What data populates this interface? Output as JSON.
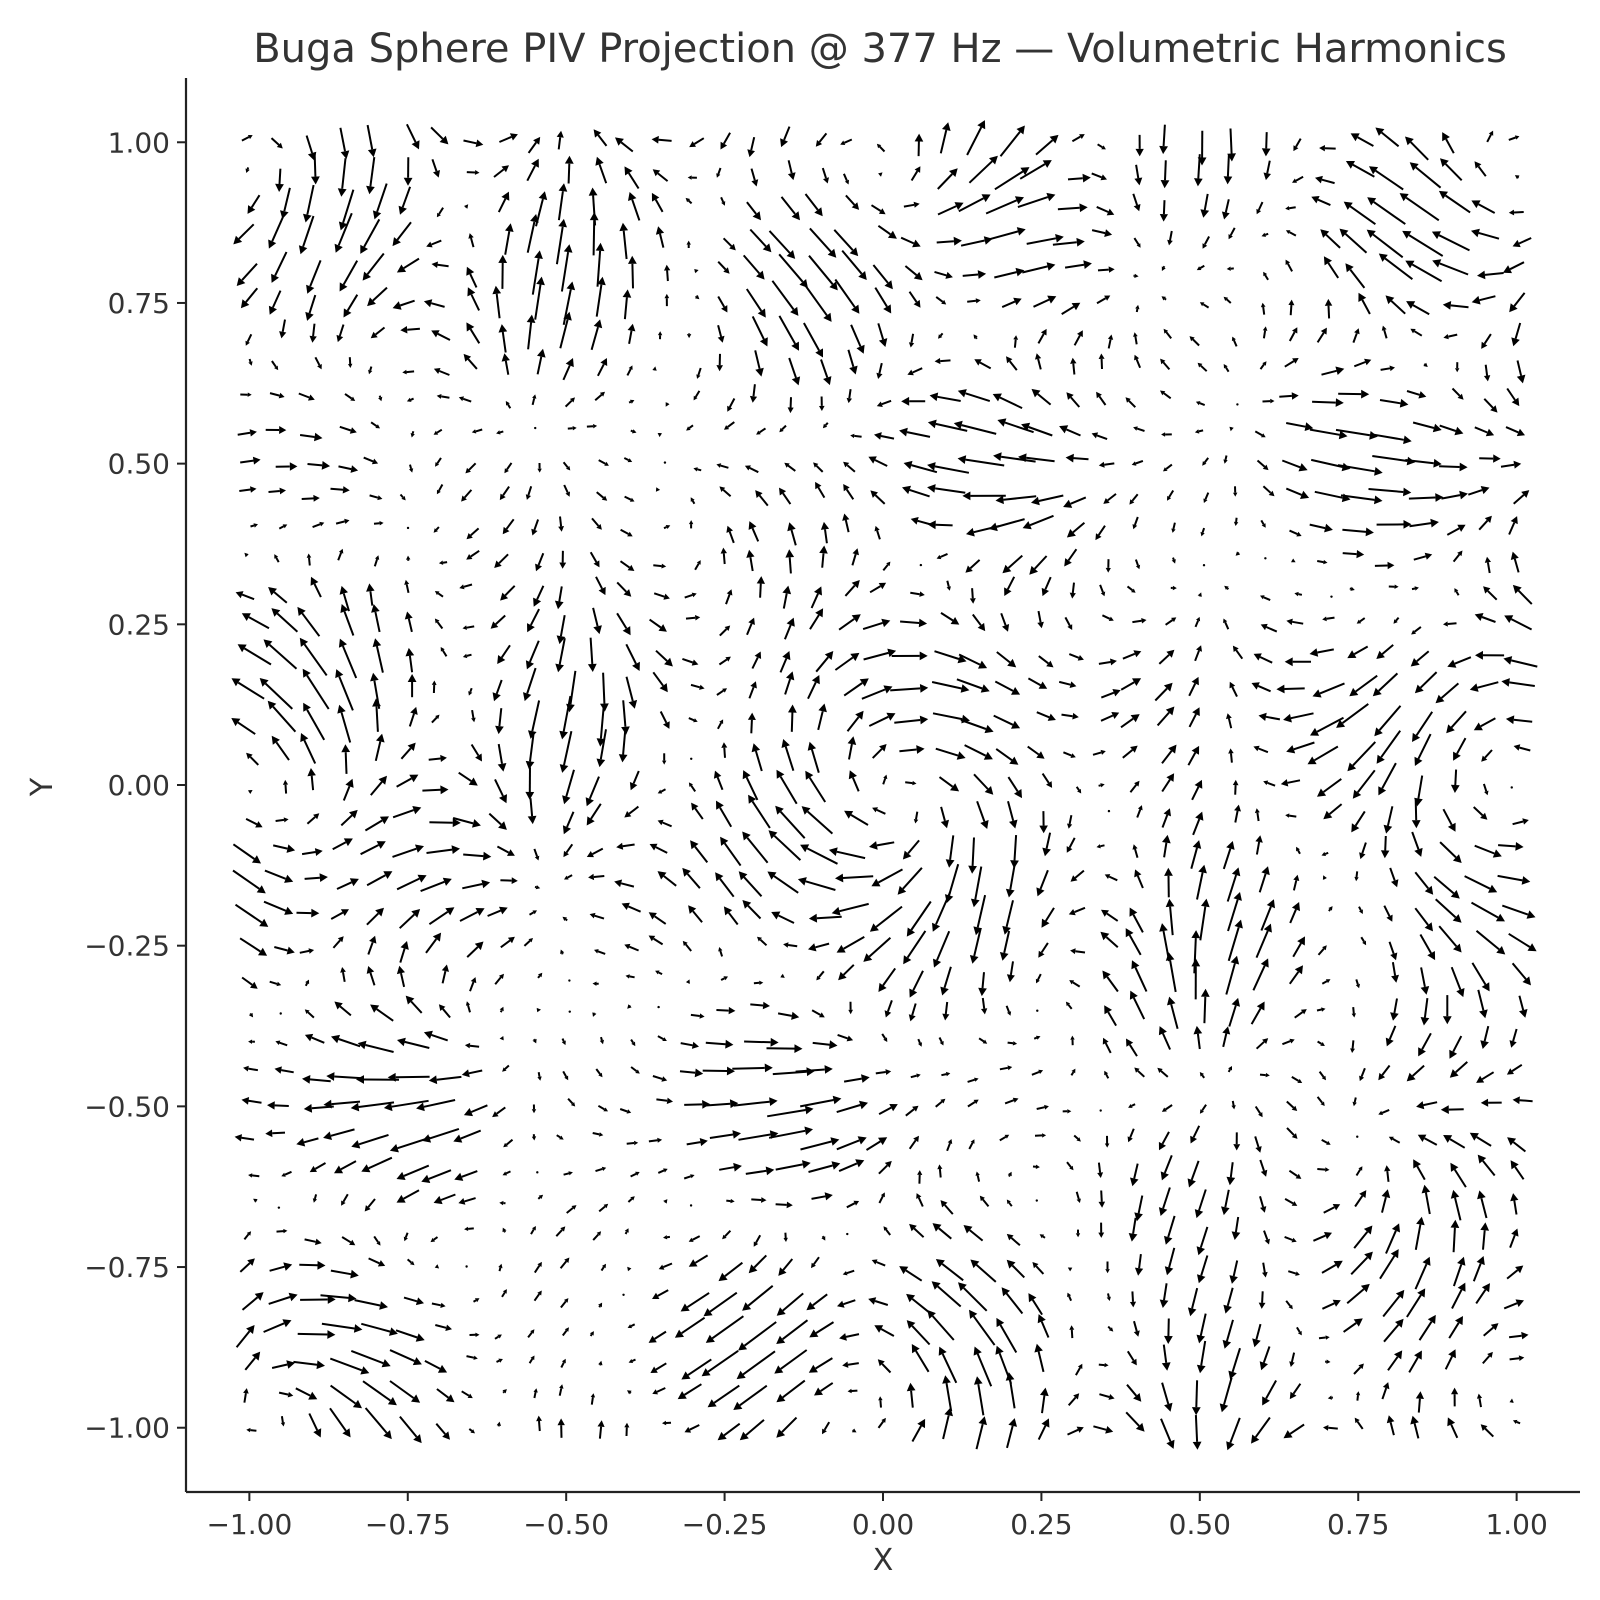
{
  "chart_data": {
    "type": "quiver",
    "title": "Buga Sphere PIV Projection @ 377 Hz — Volumetric Harmonics",
    "xlabel": "X",
    "ylabel": "Y",
    "xlim": [
      -1.1,
      1.1
    ],
    "ylim": [
      -1.1,
      1.1
    ],
    "xticks": [
      -1.0,
      -0.75,
      -0.5,
      -0.25,
      0.0,
      0.25,
      0.5,
      0.75,
      1.0
    ],
    "yticks": [
      -1.0,
      -0.75,
      -0.5,
      -0.25,
      0.0,
      0.25,
      0.5,
      0.75,
      1.0
    ],
    "xtick_labels": [
      "−1.00",
      "−0.75",
      "−0.50",
      "−0.25",
      "0.00",
      "0.25",
      "0.50",
      "0.75",
      "1.00"
    ],
    "ytick_labels": [
      "−1.00",
      "−0.75",
      "−0.50",
      "−0.25",
      "0.00",
      "0.25",
      "0.50",
      "0.75",
      "1.00"
    ],
    "grid": false,
    "arrow_color": "#000000",
    "field": {
      "x_range": [
        -1.0,
        1.0
      ],
      "y_range": [
        -1.0,
        1.0
      ],
      "nx": 41,
      "ny": 41,
      "components": "harmonic vortex field: u = sin(3πy)cos(πx) + 0.6 sin(2πx)cos(2πy), v = −sin(3πx)cos(πy) + 0.6 cos(2πx)sin(2πy)",
      "jitter": 0.04,
      "max_vector": 0.075
    }
  }
}
